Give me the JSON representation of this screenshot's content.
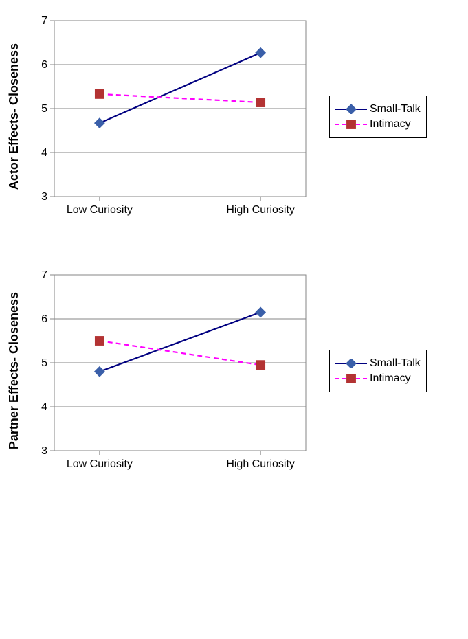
{
  "charts": [
    {
      "id": "actor",
      "ylabel": "Actor Effects- Closeness",
      "categories": [
        "Low Curiosity",
        "High Curiosity"
      ],
      "ylim": [
        3,
        7
      ],
      "ytick_step": 1,
      "plot_area_bg": "#ffffff",
      "grid_color": "#868686",
      "axis_color": "#868686",
      "tick_font_size": 16,
      "ylabel_font_size": 18,
      "series": [
        {
          "name": "Small-Talk",
          "values": [
            4.67,
            6.27
          ],
          "line_color": "#000080",
          "line_dash": "solid",
          "marker_shape": "diamond",
          "marker_fill": "#3a5fa9",
          "marker_size": 9
        },
        {
          "name": "Intimacy",
          "values": [
            5.33,
            5.14
          ],
          "line_color": "#ff00ff",
          "line_dash": "dashed",
          "marker_shape": "square",
          "marker_fill": "#b33333",
          "marker_size": 9
        }
      ],
      "legend": {
        "border_color": "#000000",
        "bg_color": "#ffffff"
      }
    },
    {
      "id": "partner",
      "ylabel": "Partner Effects- Closeness",
      "categories": [
        "Low Curiosity",
        "High Curiosity"
      ],
      "ylim": [
        3,
        7
      ],
      "ytick_step": 1,
      "plot_area_bg": "#ffffff",
      "grid_color": "#868686",
      "axis_color": "#868686",
      "tick_font_size": 16,
      "ylabel_font_size": 18,
      "series": [
        {
          "name": "Small-Talk",
          "values": [
            4.8,
            6.15
          ],
          "line_color": "#000080",
          "line_dash": "solid",
          "marker_shape": "diamond",
          "marker_fill": "#3a5fa9",
          "marker_size": 9
        },
        {
          "name": "Intimacy",
          "values": [
            5.5,
            4.95
          ],
          "line_color": "#ff00ff",
          "line_dash": "dashed",
          "marker_shape": "square",
          "marker_fill": "#b33333",
          "marker_size": 9
        }
      ],
      "legend": {
        "border_color": "#000000",
        "bg_color": "#ffffff"
      }
    }
  ]
}
